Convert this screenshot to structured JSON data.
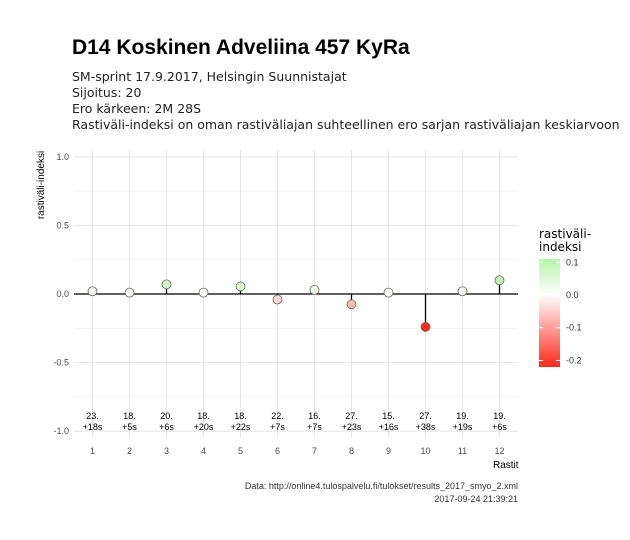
{
  "header": {
    "title": "D14 Koskinen Adveliina 457 KyRa",
    "subtitle_lines": [
      "SM-sprint 17.9.2017, Helsingin Suunnistajat",
      "Sijoitus: 20",
      "Ero kärkeen: 2M 28S",
      "Rastiväli-indeksi on oman rastiväliajan suhteellinen ero sarjan rastiväliajan keskiarvoon"
    ]
  },
  "caption": {
    "line1": "Data: http://online4.tulospalvelu.fi/tulokset/results_2017_smyo_2.xml",
    "line2": "2017-09-24 21:39:21"
  },
  "legend": {
    "title_lines": [
      "rastiväli-",
      "indeksi"
    ],
    "ticks": [
      "0.1",
      "0.0",
      "-0.1",
      "-0.2"
    ],
    "tick_values": [
      0.1,
      0.0,
      -0.1,
      -0.2
    ],
    "range": [
      -0.22,
      0.11
    ],
    "colors": {
      "low": "#ff2a1a",
      "mid": "#ffffff",
      "high": "#b6f5a8"
    }
  },
  "chart_data": {
    "type": "scatter",
    "xlabel": "Rastit",
    "ylabel": "rastiväli-indeksi",
    "xlim": [
      0.5,
      12.5
    ],
    "ylim": [
      -1.05,
      1.05
    ],
    "x": [
      1,
      2,
      3,
      4,
      5,
      6,
      7,
      8,
      9,
      10,
      11,
      12
    ],
    "values": [
      0.02,
      0.01,
      0.07,
      0.01,
      0.055,
      -0.04,
      0.03,
      -0.075,
      0.01,
      -0.24,
      0.02,
      0.1
    ],
    "x_ticks": [
      "1",
      "2",
      "3",
      "4",
      "5",
      "6",
      "7",
      "8",
      "9",
      "10",
      "11",
      "12"
    ],
    "y_ticks": [
      1.0,
      0.5,
      0.0,
      -0.5,
      -1.0
    ],
    "y_tick_labels": [
      "1.0",
      "0.5",
      "0.0",
      "-0.5",
      "-1.0"
    ],
    "annotations": [
      [
        "23.",
        "+18s"
      ],
      [
        "18.",
        "+5s"
      ],
      [
        "20.",
        "+6s"
      ],
      [
        "18.",
        "+20s"
      ],
      [
        "18.",
        "+22s"
      ],
      [
        "22.",
        "+7s"
      ],
      [
        "16.",
        "+7s"
      ],
      [
        "27.",
        "+23s"
      ],
      [
        "15.",
        "+16s"
      ],
      [
        "27.",
        "+38s"
      ],
      [
        "19.",
        "+19s"
      ],
      [
        "19.",
        "+6s"
      ]
    ],
    "annotation_y": -0.91,
    "grid": true
  }
}
